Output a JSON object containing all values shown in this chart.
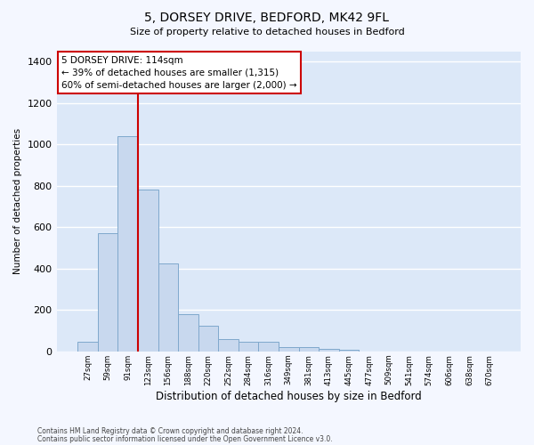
{
  "title_line1": "5, DORSEY DRIVE, BEDFORD, MK42 9FL",
  "title_line2": "Size of property relative to detached houses in Bedford",
  "xlabel": "Distribution of detached houses by size in Bedford",
  "ylabel": "Number of detached properties",
  "categories": [
    "27sqm",
    "59sqm",
    "91sqm",
    "123sqm",
    "156sqm",
    "188sqm",
    "220sqm",
    "252sqm",
    "284sqm",
    "316sqm",
    "349sqm",
    "381sqm",
    "413sqm",
    "445sqm",
    "477sqm",
    "509sqm",
    "541sqm",
    "574sqm",
    "606sqm",
    "638sqm",
    "670sqm"
  ],
  "values": [
    45,
    570,
    1040,
    780,
    425,
    180,
    125,
    60,
    48,
    48,
    22,
    20,
    12,
    8,
    0,
    0,
    0,
    0,
    0,
    0,
    0
  ],
  "bar_color": "#c8d8ee",
  "bar_edge_color": "#7fa8cc",
  "vline_x": 3.0,
  "vline_color": "#cc0000",
  "annotation_text": "5 DORSEY DRIVE: 114sqm\n← 39% of detached houses are smaller (1,315)\n60% of semi-detached houses are larger (2,000) →",
  "annotation_box_color": "#ffffff",
  "annotation_box_edge": "#cc0000",
  "ylim": [
    0,
    1450
  ],
  "yticks": [
    0,
    200,
    400,
    600,
    800,
    1000,
    1200,
    1400
  ],
  "plot_bg_color": "#dce8f8",
  "figure_bg_color": "#f4f7ff",
  "grid_color": "#ffffff",
  "footer_line1": "Contains HM Land Registry data © Crown copyright and database right 2024.",
  "footer_line2": "Contains public sector information licensed under the Open Government Licence v3.0."
}
